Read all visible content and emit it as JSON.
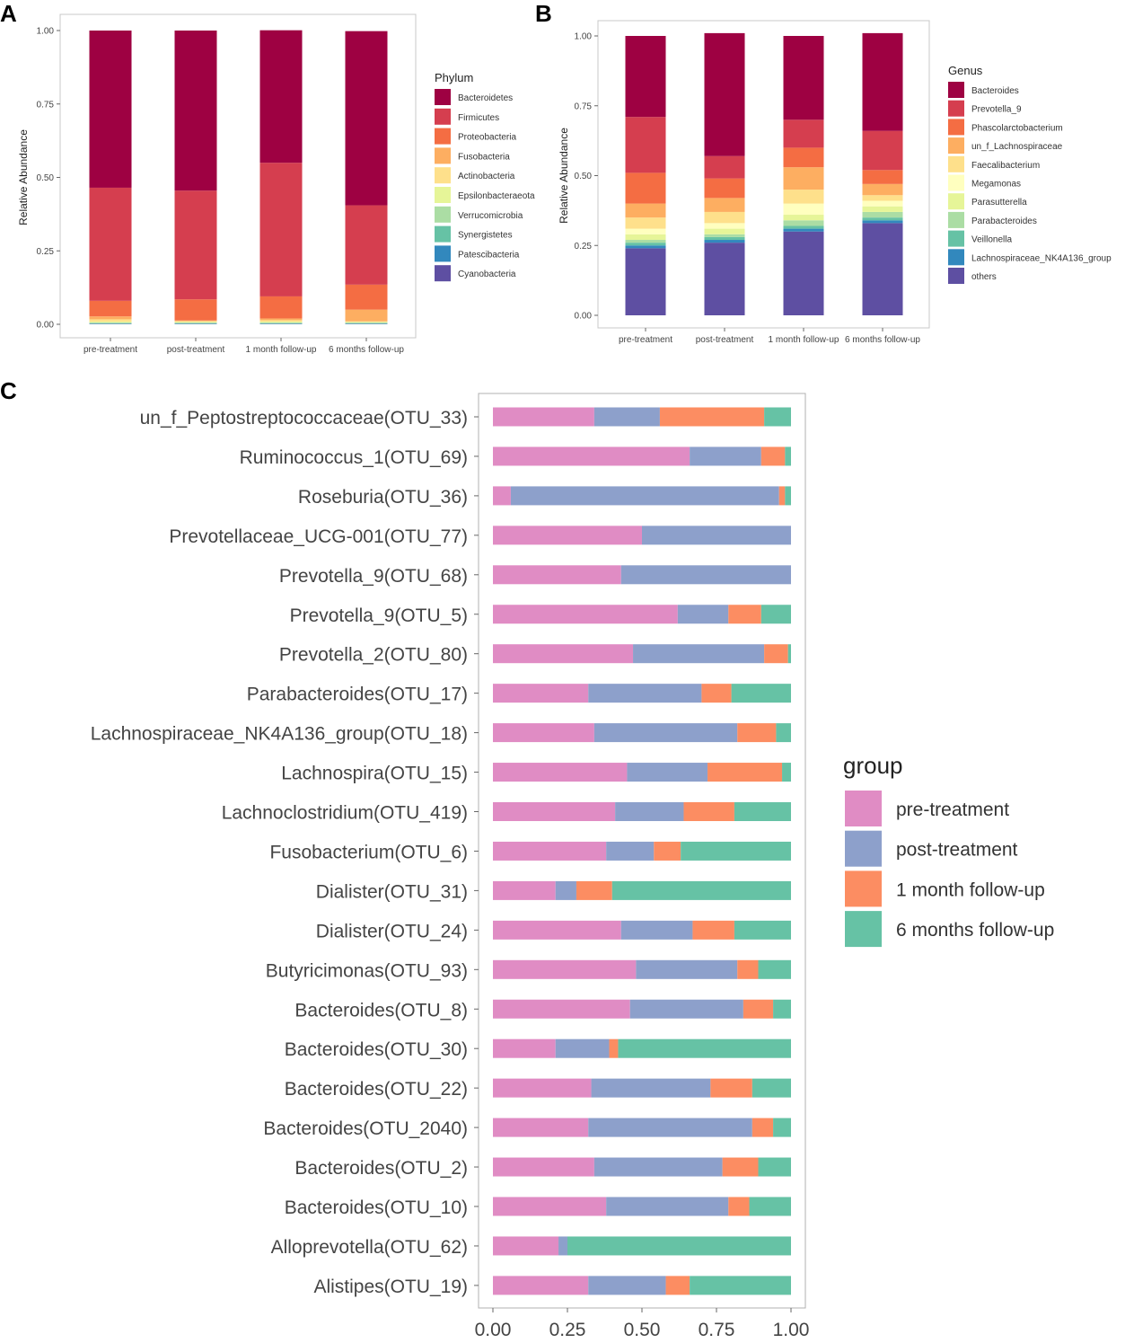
{
  "panel_letters": [
    "A",
    "B",
    "C"
  ],
  "chart_data": [
    {
      "panel": "A",
      "type": "bar",
      "stacked": true,
      "title": "",
      "xlabel": "",
      "ylabel": "Relative Abundance",
      "ylim": [
        0,
        1
      ],
      "yticks": [
        "0.00",
        "0.25",
        "0.50",
        "0.75",
        "1.00"
      ],
      "categories": [
        "pre-treatment",
        "post-treatment",
        "1 month follow-up",
        "6 months follow-up"
      ],
      "legend_title": "Phylum",
      "legend_position": "right",
      "series": [
        {
          "name": "Cyanobacteria",
          "color": "#5e4fa2",
          "values": [
            0.001,
            0.001,
            0.001,
            0.001
          ]
        },
        {
          "name": "Patescibacteria",
          "color": "#3288bd",
          "values": [
            0.001,
            0.001,
            0.001,
            0.001
          ]
        },
        {
          "name": "Synergistetes",
          "color": "#66c2a5",
          "values": [
            0.002,
            0.002,
            0.002,
            0.002
          ]
        },
        {
          "name": "Verrucomicrobia",
          "color": "#abdda4",
          "values": [
            0.002,
            0.002,
            0.002,
            0.002
          ]
        },
        {
          "name": "Epsilonbacteraeota",
          "color": "#e6f598",
          "values": [
            0.003,
            0.002,
            0.003,
            0.002
          ]
        },
        {
          "name": "Actinobacteria",
          "color": "#fee08b",
          "values": [
            0.008,
            0.003,
            0.005,
            0.002
          ]
        },
        {
          "name": "Fusobacteria",
          "color": "#fdae61",
          "values": [
            0.01,
            0.002,
            0.006,
            0.04
          ]
        },
        {
          "name": "Proteobacteria",
          "color": "#f46d43",
          "values": [
            0.053,
            0.072,
            0.075,
            0.085
          ]
        },
        {
          "name": "Firmicutes",
          "color": "#d53e4f",
          "values": [
            0.385,
            0.37,
            0.455,
            0.27
          ]
        },
        {
          "name": "Bacteroidetes",
          "color": "#9e0142",
          "values": [
            0.535,
            0.545,
            0.451,
            0.593
          ]
        }
      ]
    },
    {
      "panel": "B",
      "type": "bar",
      "stacked": true,
      "title": "",
      "xlabel": "",
      "ylabel": "Relative Abundance",
      "ylim": [
        0,
        1
      ],
      "yticks": [
        "0.00",
        "0.25",
        "0.50",
        "0.75",
        "1.00"
      ],
      "categories": [
        "pre-treatment",
        "post-treatment",
        "1 month follow-up",
        "6 months follow-up"
      ],
      "legend_title": "Genus",
      "legend_position": "right",
      "series": [
        {
          "name": "others",
          "color": "#5e4fa2",
          "values": [
            0.24,
            0.26,
            0.3,
            0.33
          ]
        },
        {
          "name": "Lachnospiraceae_NK4A136_group",
          "color": "#3288bd",
          "values": [
            0.01,
            0.01,
            0.01,
            0.01
          ]
        },
        {
          "name": "Veillonella",
          "color": "#66c2a5",
          "values": [
            0.01,
            0.01,
            0.01,
            0.01
          ]
        },
        {
          "name": "Parabacteroides",
          "color": "#abdda4",
          "values": [
            0.01,
            0.01,
            0.02,
            0.02
          ]
        },
        {
          "name": "Parasutterella",
          "color": "#e6f598",
          "values": [
            0.02,
            0.02,
            0.02,
            0.02
          ]
        },
        {
          "name": "Megamonas",
          "color": "#ffffbf",
          "values": [
            0.02,
            0.02,
            0.04,
            0.02
          ]
        },
        {
          "name": "Faecalibacterium",
          "color": "#fee08b",
          "values": [
            0.04,
            0.04,
            0.05,
            0.02
          ]
        },
        {
          "name": "un_f_Lachnospiraceae",
          "color": "#fdae61",
          "values": [
            0.05,
            0.05,
            0.08,
            0.04
          ]
        },
        {
          "name": "Phascolarctobacterium",
          "color": "#f46d43",
          "values": [
            0.11,
            0.07,
            0.07,
            0.05
          ]
        },
        {
          "name": "Prevotella_9",
          "color": "#d53e4f",
          "values": [
            0.2,
            0.08,
            0.1,
            0.14
          ]
        },
        {
          "name": "Bacteroides",
          "color": "#9e0142",
          "values": [
            0.29,
            0.44,
            0.3,
            0.35
          ]
        }
      ]
    },
    {
      "panel": "C",
      "type": "bar",
      "orientation": "horizontal",
      "stacked": true,
      "title": "",
      "xlabel": "",
      "ylabel": "",
      "xlim": [
        0,
        1
      ],
      "xticks": [
        "0.00",
        "0.25",
        "0.50",
        "0.75",
        "1.00"
      ],
      "legend_title": "group",
      "legend_position": "right",
      "categories": [
        "un_f_Peptostreptococcaceae(OTU_33)",
        "Ruminococcus_1(OTU_69)",
        "Roseburia(OTU_36)",
        "Prevotellaceae_UCG-001(OTU_77)",
        "Prevotella_9(OTU_68)",
        "Prevotella_9(OTU_5)",
        "Prevotella_2(OTU_80)",
        "Parabacteroides(OTU_17)",
        "Lachnospiraceae_NK4A136_group(OTU_18)",
        "Lachnospira(OTU_15)",
        "Lachnoclostridium(OTU_419)",
        "Fusobacterium(OTU_6)",
        "Dialister(OTU_31)",
        "Dialister(OTU_24)",
        "Butyricimonas(OTU_93)",
        "Bacteroides(OTU_8)",
        "Bacteroides(OTU_30)",
        "Bacteroides(OTU_22)",
        "Bacteroides(OTU_2040)",
        "Bacteroides(OTU_2)",
        "Bacteroides(OTU_10)",
        "Alloprevotella(OTU_62)",
        "Alistipes(OTU_19)"
      ],
      "series": [
        {
          "name": "pre-treatment",
          "color": "#e08cc4",
          "values": [
            0.34,
            0.66,
            0.06,
            0.5,
            0.43,
            0.62,
            0.47,
            0.32,
            0.34,
            0.45,
            0.41,
            0.38,
            0.21,
            0.43,
            0.48,
            0.46,
            0.21,
            0.33,
            0.32,
            0.34,
            0.38,
            0.22,
            0.32
          ]
        },
        {
          "name": "post-treatment",
          "color": "#8da0cb",
          "values": [
            0.22,
            0.24,
            0.9,
            0.5,
            0.57,
            0.17,
            0.44,
            0.38,
            0.48,
            0.27,
            0.23,
            0.16,
            0.07,
            0.24,
            0.34,
            0.38,
            0.18,
            0.4,
            0.55,
            0.43,
            0.41,
            0.03,
            0.26
          ]
        },
        {
          "name": "1 month follow-up",
          "color": "#fc8d62",
          "values": [
            0.35,
            0.08,
            0.02,
            0.0,
            0.0,
            0.11,
            0.08,
            0.1,
            0.13,
            0.25,
            0.17,
            0.09,
            0.12,
            0.14,
            0.07,
            0.1,
            0.03,
            0.14,
            0.07,
            0.12,
            0.07,
            0.0,
            0.08
          ]
        },
        {
          "name": "6 months follow-up",
          "color": "#66c2a5",
          "values": [
            0.09,
            0.02,
            0.02,
            0.0,
            0.0,
            0.1,
            0.01,
            0.2,
            0.05,
            0.03,
            0.19,
            0.37,
            0.6,
            0.19,
            0.11,
            0.06,
            0.58,
            0.13,
            0.06,
            0.11,
            0.14,
            0.75,
            0.34
          ]
        }
      ]
    }
  ]
}
